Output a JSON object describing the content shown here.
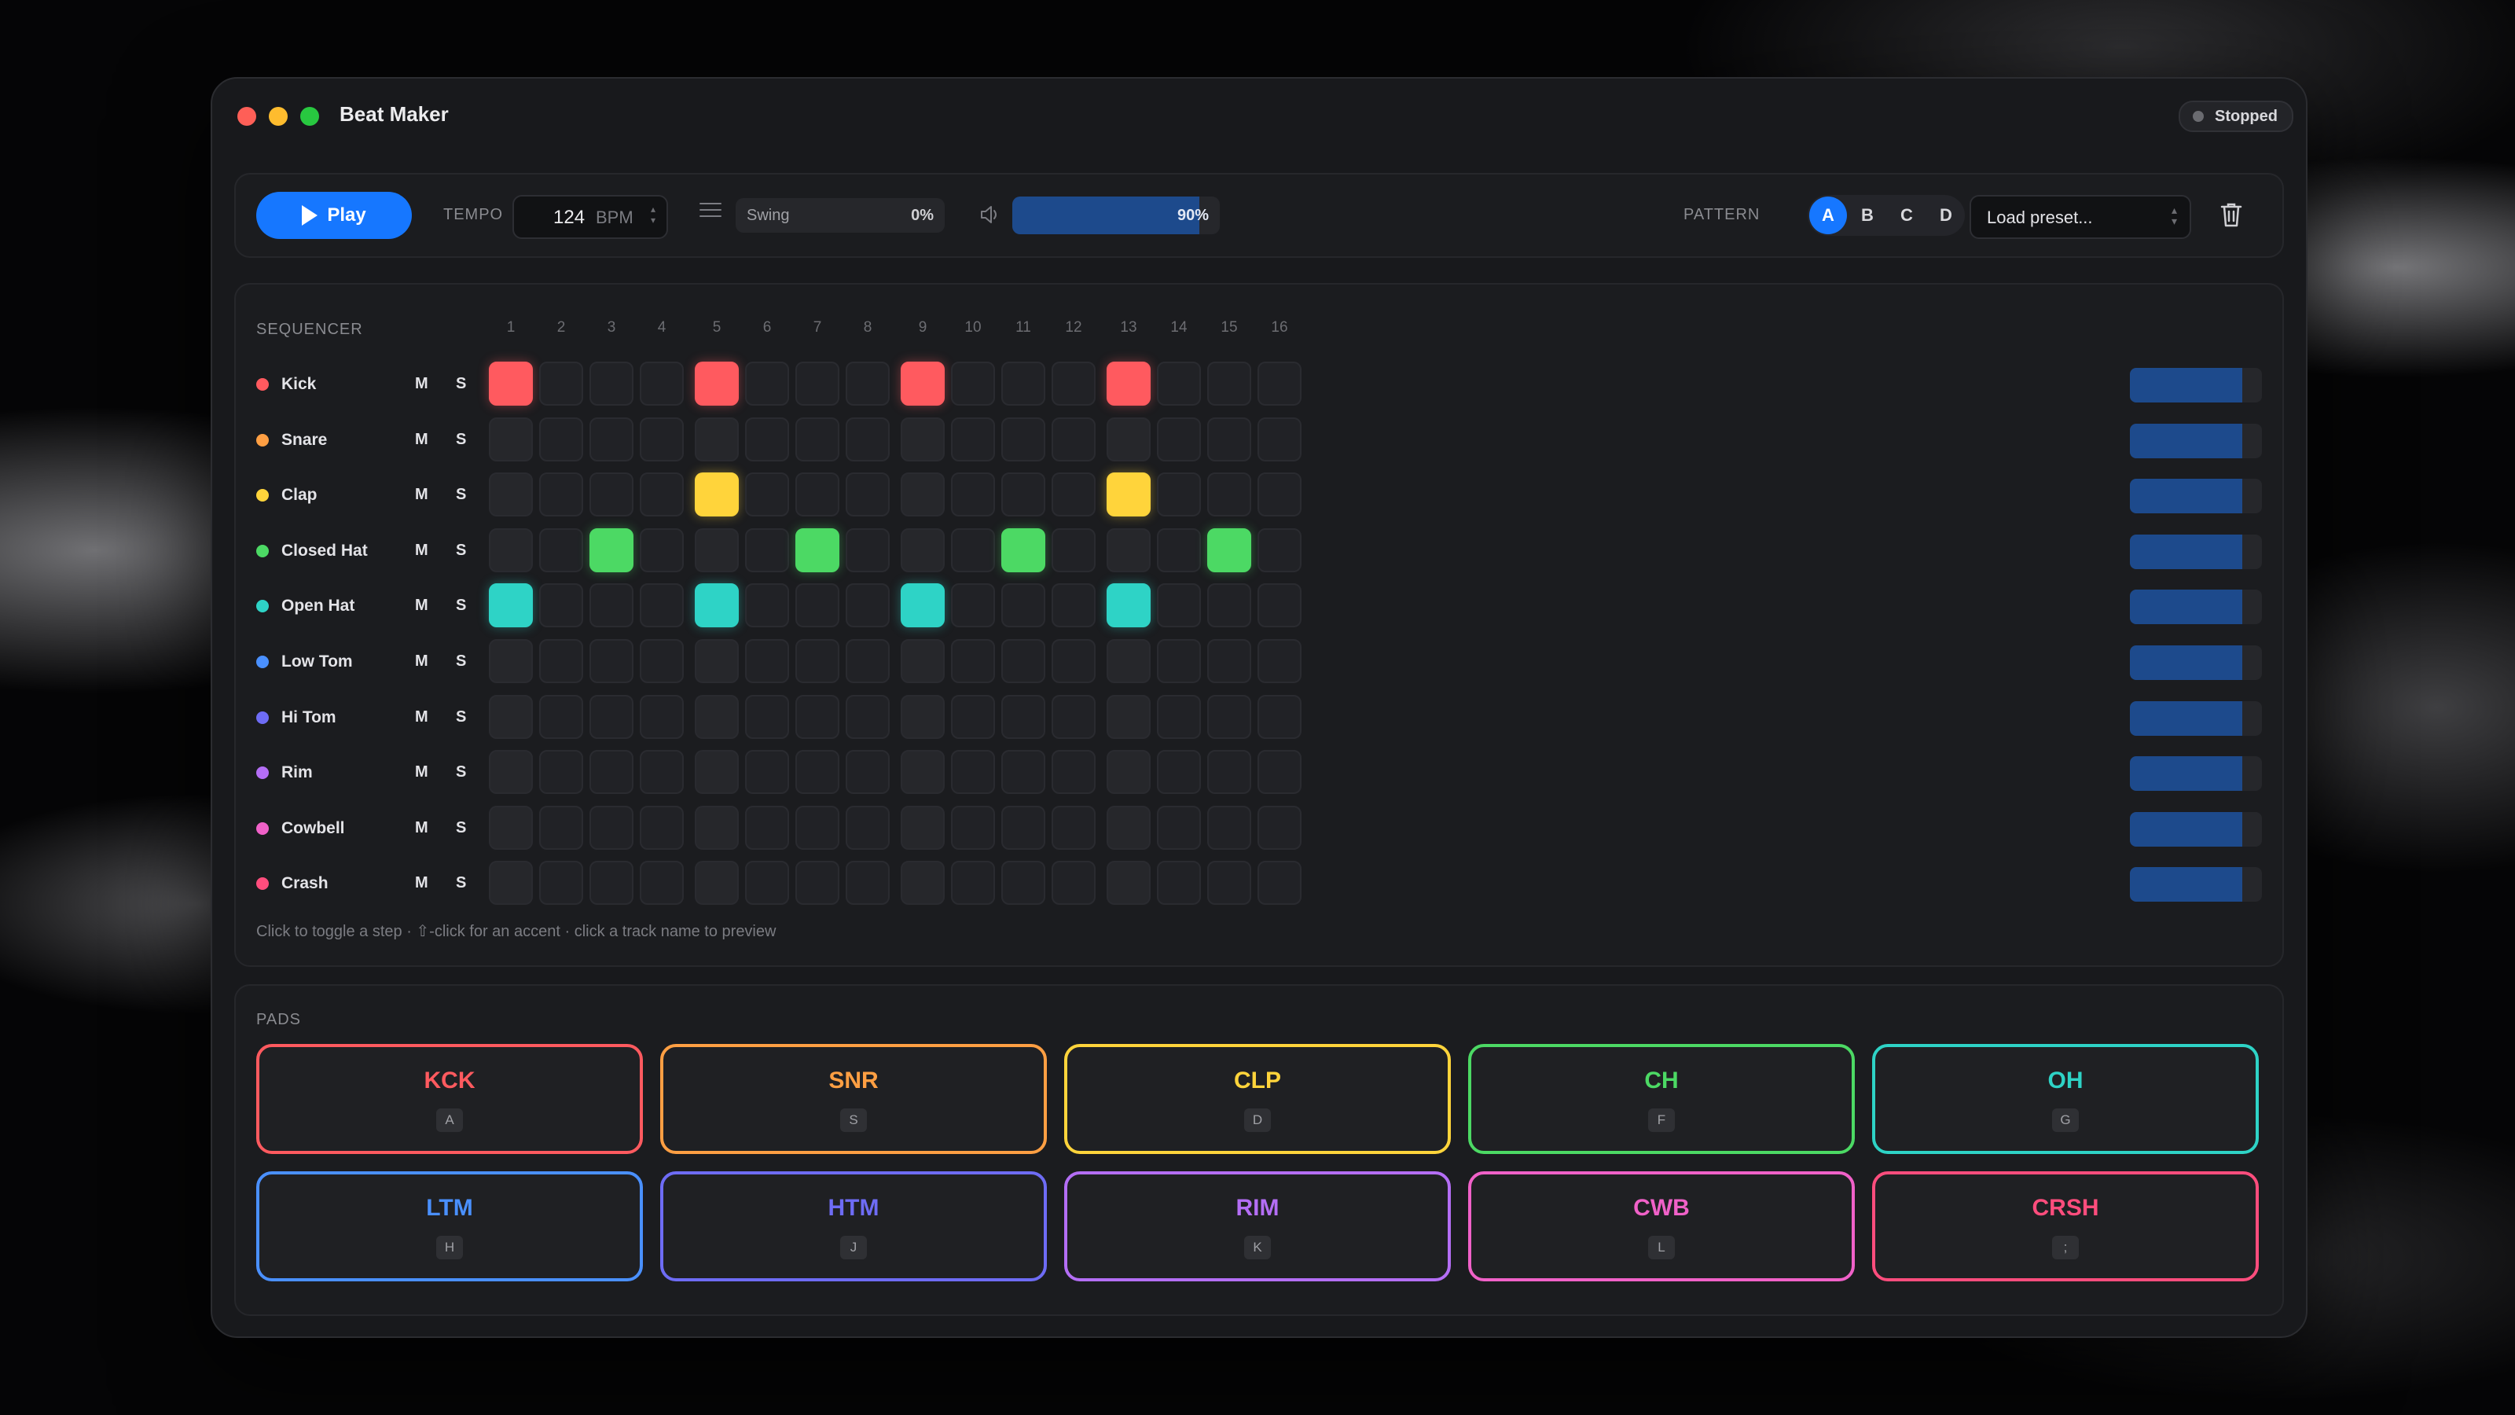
{
  "window": {
    "title": "Beat Maker",
    "status": "Stopped"
  },
  "toolbar": {
    "play_label": "Play",
    "tempo_label": "TEMPO",
    "tempo_value": "124",
    "tempo_unit": "BPM",
    "swing_label": "Swing",
    "swing_value": "0%",
    "volume_value": "90%",
    "volume_level": 0.9,
    "pattern_label": "PATTERN",
    "patterns": [
      "A",
      "B",
      "C",
      "D"
    ],
    "active_pattern": "A",
    "preset_placeholder": "Load preset..."
  },
  "sequencer": {
    "title": "SEQUENCER",
    "steps": [
      "1",
      "2",
      "3",
      "4",
      "5",
      "6",
      "7",
      "8",
      "9",
      "10",
      "11",
      "12",
      "13",
      "14",
      "15",
      "16"
    ],
    "mute_label": "M",
    "solo_label": "S",
    "hint": "Click to toggle a step · ⇧-click for an accent · click a track name to preview",
    "tracks": [
      {
        "name": "Kick",
        "color": "#ff5a5f",
        "active_steps": [
          1,
          5,
          9,
          13
        ],
        "volume_level": 0.85
      },
      {
        "name": "Snare",
        "color": "#ff9f43",
        "active_steps": [],
        "volume_level": 0.85
      },
      {
        "name": "Clap",
        "color": "#ffd43b",
        "active_steps": [
          5,
          13
        ],
        "volume_level": 0.85
      },
      {
        "name": "Closed Hat",
        "color": "#4cd964",
        "active_steps": [
          3,
          7,
          11,
          15
        ],
        "volume_level": 0.85
      },
      {
        "name": "Open Hat",
        "color": "#2ed3c6",
        "active_steps": [
          1,
          5,
          9,
          13
        ],
        "volume_level": 0.85
      },
      {
        "name": "Low Tom",
        "color": "#4a90ff",
        "active_steps": [],
        "volume_level": 0.85
      },
      {
        "name": "Hi Tom",
        "color": "#6e6cf5",
        "active_steps": [],
        "volume_level": 0.85
      },
      {
        "name": "Rim",
        "color": "#b46ef5",
        "active_steps": [],
        "volume_level": 0.85
      },
      {
        "name": "Cowbell",
        "color": "#f061c8",
        "active_steps": [],
        "volume_level": 0.85
      },
      {
        "name": "Crash",
        "color": "#ff4d7d",
        "active_steps": [],
        "volume_level": 0.85
      }
    ]
  },
  "pads": {
    "title": "PADS",
    "items": [
      {
        "label": "KCK",
        "key": "A",
        "color": "#ff5a5f"
      },
      {
        "label": "SNR",
        "key": "S",
        "color": "#ff9f43"
      },
      {
        "label": "CLP",
        "key": "D",
        "color": "#ffd43b"
      },
      {
        "label": "CH",
        "key": "F",
        "color": "#4cd964"
      },
      {
        "label": "OH",
        "key": "G",
        "color": "#2ed3c6"
      },
      {
        "label": "LTM",
        "key": "H",
        "color": "#4a90ff"
      },
      {
        "label": "HTM",
        "key": "J",
        "color": "#6e6cf5"
      },
      {
        "label": "RIM",
        "key": "K",
        "color": "#b46ef5"
      },
      {
        "label": "CWB",
        "key": "L",
        "color": "#f061c8"
      },
      {
        "label": "CRSH",
        "key": ";",
        "color": "#ff4d7d"
      }
    ]
  }
}
